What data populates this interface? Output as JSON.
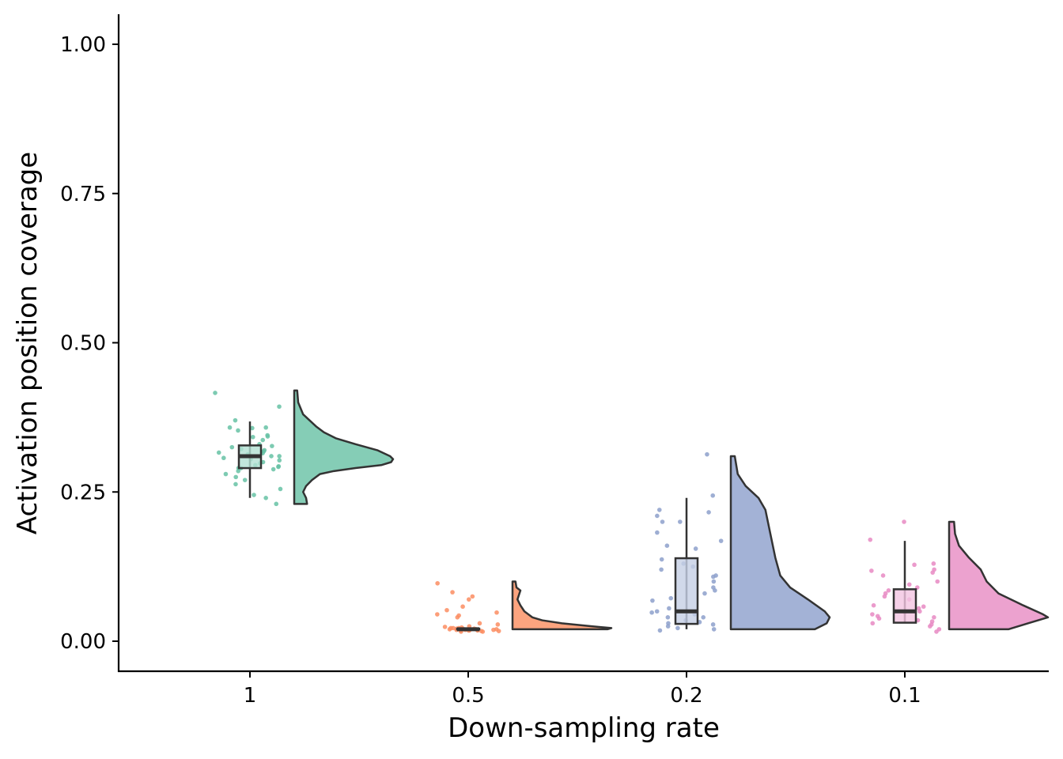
{
  "chart_data": {
    "type": "raincloud",
    "xlabel": "Down-sampling rate",
    "ylabel": "Activation position coverage",
    "ylim": [
      -0.05,
      1.05
    ],
    "yticks": [
      0,
      0.25,
      0.5,
      0.75,
      1.0
    ],
    "ytick_labels": [
      "0.00",
      "0.25",
      "0.50",
      "0.75",
      "1.00"
    ],
    "categories": [
      "1",
      "0.5",
      "0.2",
      "0.1"
    ],
    "groups": [
      {
        "name": "1",
        "color": "#66c2a5",
        "fill": "#85cdb6",
        "box_fill": "#b2e0d2",
        "box": {
          "whisker_low": 0.24,
          "q1": 0.29,
          "median": 0.31,
          "q3": 0.328,
          "whisker_high": 0.368
        },
        "violin": [
          [
            0.42,
            0.03
          ],
          [
            0.4,
            0.04
          ],
          [
            0.38,
            0.09
          ],
          [
            0.36,
            0.22
          ],
          [
            0.35,
            0.3
          ],
          [
            0.34,
            0.42
          ],
          [
            0.33,
            0.62
          ],
          [
            0.32,
            0.84
          ],
          [
            0.31,
            0.97
          ],
          [
            0.305,
            1.0
          ],
          [
            0.3,
            0.98
          ],
          [
            0.295,
            0.88
          ],
          [
            0.29,
            0.62
          ],
          [
            0.285,
            0.4
          ],
          [
            0.28,
            0.26
          ],
          [
            0.27,
            0.18
          ],
          [
            0.26,
            0.12
          ],
          [
            0.25,
            0.09
          ],
          [
            0.24,
            0.12
          ],
          [
            0.23,
            0.13
          ]
        ],
        "points": [
          0.416,
          0.393,
          0.37,
          0.358,
          0.358,
          0.357,
          0.353,
          0.345,
          0.343,
          0.342,
          0.337,
          0.33,
          0.327,
          0.325,
          0.322,
          0.32,
          0.318,
          0.316,
          0.315,
          0.313,
          0.31,
          0.31,
          0.307,
          0.305,
          0.303,
          0.3,
          0.298,
          0.295,
          0.293,
          0.292,
          0.29,
          0.29,
          0.288,
          0.285,
          0.28,
          0.275,
          0.27,
          0.263,
          0.255,
          0.245,
          0.24,
          0.23
        ]
      },
      {
        "name": "0.5",
        "color": "#fc8d62",
        "fill": "#fca47f",
        "box_fill": "#fdc6b0",
        "box": {
          "whisker_low": 0.02,
          "q1": 0.02,
          "median": 0.02,
          "q3": 0.021,
          "whisker_high": 0.021
        },
        "violin": [
          [
            0.1,
            0.03
          ],
          [
            0.09,
            0.04
          ],
          [
            0.085,
            0.08
          ],
          [
            0.075,
            0.06
          ],
          [
            0.07,
            0.05
          ],
          [
            0.06,
            0.08
          ],
          [
            0.05,
            0.12
          ],
          [
            0.04,
            0.2
          ],
          [
            0.035,
            0.3
          ],
          [
            0.03,
            0.5
          ],
          [
            0.025,
            0.8
          ],
          [
            0.022,
            1.0
          ],
          [
            0.02,
            0.96
          ]
        ],
        "points": [
          0.097,
          0.082,
          0.075,
          0.07,
          0.058,
          0.052,
          0.048,
          0.045,
          0.043,
          0.04,
          0.03,
          0.028,
          0.025,
          0.024,
          0.023,
          0.022,
          0.022,
          0.021,
          0.021,
          0.02,
          0.02,
          0.02,
          0.02,
          0.019,
          0.019,
          0.019,
          0.018,
          0.018,
          0.018,
          0.017,
          0.017,
          0.016,
          0.016,
          0.022,
          0.021,
          0.02,
          0.019,
          0.018
        ]
      },
      {
        "name": "0.2",
        "color": "#8da0cb",
        "fill": "#a3b2d6",
        "box_fill": "#c6cfe5",
        "box": {
          "whisker_low": 0.02,
          "q1": 0.029,
          "median": 0.05,
          "q3": 0.139,
          "whisker_high": 0.24
        },
        "violin": [
          [
            0.31,
            0.04
          ],
          [
            0.3,
            0.05
          ],
          [
            0.28,
            0.07
          ],
          [
            0.26,
            0.15
          ],
          [
            0.24,
            0.28
          ],
          [
            0.22,
            0.35
          ],
          [
            0.18,
            0.4
          ],
          [
            0.14,
            0.45
          ],
          [
            0.11,
            0.5
          ],
          [
            0.09,
            0.6
          ],
          [
            0.07,
            0.78
          ],
          [
            0.05,
            0.95
          ],
          [
            0.04,
            1.0
          ],
          [
            0.03,
            0.97
          ],
          [
            0.02,
            0.85
          ]
        ],
        "points": [
          0.313,
          0.244,
          0.22,
          0.216,
          0.21,
          0.2,
          0.2,
          0.182,
          0.168,
          0.16,
          0.155,
          0.137,
          0.13,
          0.125,
          0.12,
          0.11,
          0.108,
          0.1,
          0.09,
          0.085,
          0.08,
          0.072,
          0.068,
          0.055,
          0.05,
          0.048,
          0.045,
          0.04,
          0.04,
          0.035,
          0.032,
          0.03,
          0.028,
          0.025,
          0.022,
          0.02,
          0.018
        ]
      },
      {
        "name": "0.1",
        "color": "#e78ac3",
        "fill": "#eca2cf",
        "box_fill": "#f3c4e1",
        "box": {
          "whisker_low": 0.03,
          "q1": 0.031,
          "median": 0.05,
          "q3": 0.087,
          "whisker_high": 0.168
        },
        "violin": [
          [
            0.2,
            0.05
          ],
          [
            0.18,
            0.06
          ],
          [
            0.16,
            0.1
          ],
          [
            0.14,
            0.2
          ],
          [
            0.12,
            0.32
          ],
          [
            0.1,
            0.38
          ],
          [
            0.08,
            0.5
          ],
          [
            0.06,
            0.75
          ],
          [
            0.045,
            0.95
          ],
          [
            0.04,
            1.0
          ],
          [
            0.03,
            0.8
          ],
          [
            0.02,
            0.6
          ]
        ],
        "points": [
          0.2,
          0.17,
          0.13,
          0.128,
          0.12,
          0.118,
          0.115,
          0.11,
          0.1,
          0.095,
          0.09,
          0.085,
          0.08,
          0.075,
          0.07,
          0.06,
          0.058,
          0.055,
          0.05,
          0.048,
          0.045,
          0.042,
          0.04,
          0.038,
          0.035,
          0.033,
          0.03,
          0.028,
          0.025,
          0.02,
          0.016
        ]
      }
    ]
  }
}
